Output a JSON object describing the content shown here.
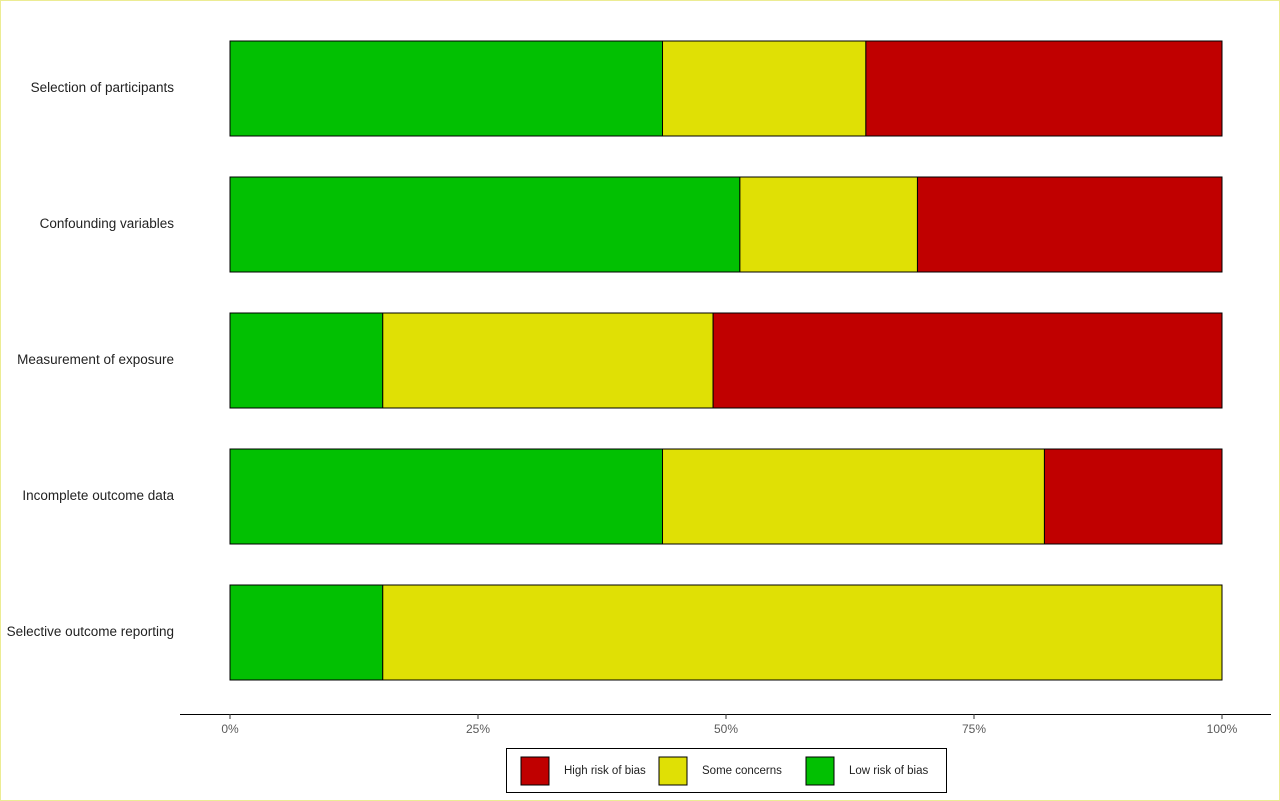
{
  "chart_data": {
    "type": "bar",
    "orientation": "horizontal",
    "stacked": true,
    "categories": [
      "Selection of participants",
      "Confounding variables",
      "Measurement of exposure",
      "Incomplete outcome data",
      "Selective outcome reporting"
    ],
    "series": [
      {
        "name": "Low risk of bias",
        "color": "#02c002",
        "values": [
          43.6,
          51.4,
          15.4,
          43.6,
          15.4
        ]
      },
      {
        "name": "Some concerns",
        "color": "#e0e005",
        "values": [
          20.5,
          17.9,
          33.3,
          38.5,
          84.6
        ]
      },
      {
        "name": "High risk of bias",
        "color": "#c00000",
        "values": [
          35.9,
          30.7,
          51.3,
          17.9,
          0
        ]
      }
    ],
    "x_ticks": [
      "0%",
      "25%",
      "50%",
      "75%",
      "100%"
    ],
    "xlim": [
      0,
      100
    ],
    "unit": "%",
    "grid": false,
    "title": "",
    "xlabel": "",
    "ylabel": "",
    "legend": {
      "placement": "bottom-center",
      "items": [
        "High risk of bias",
        "Some concerns",
        "Low risk of bias"
      ]
    }
  },
  "colors": {
    "low": "#02c002",
    "some": "#e0e005",
    "high": "#c00000",
    "border": "#ecec94",
    "outline": "#000000"
  }
}
